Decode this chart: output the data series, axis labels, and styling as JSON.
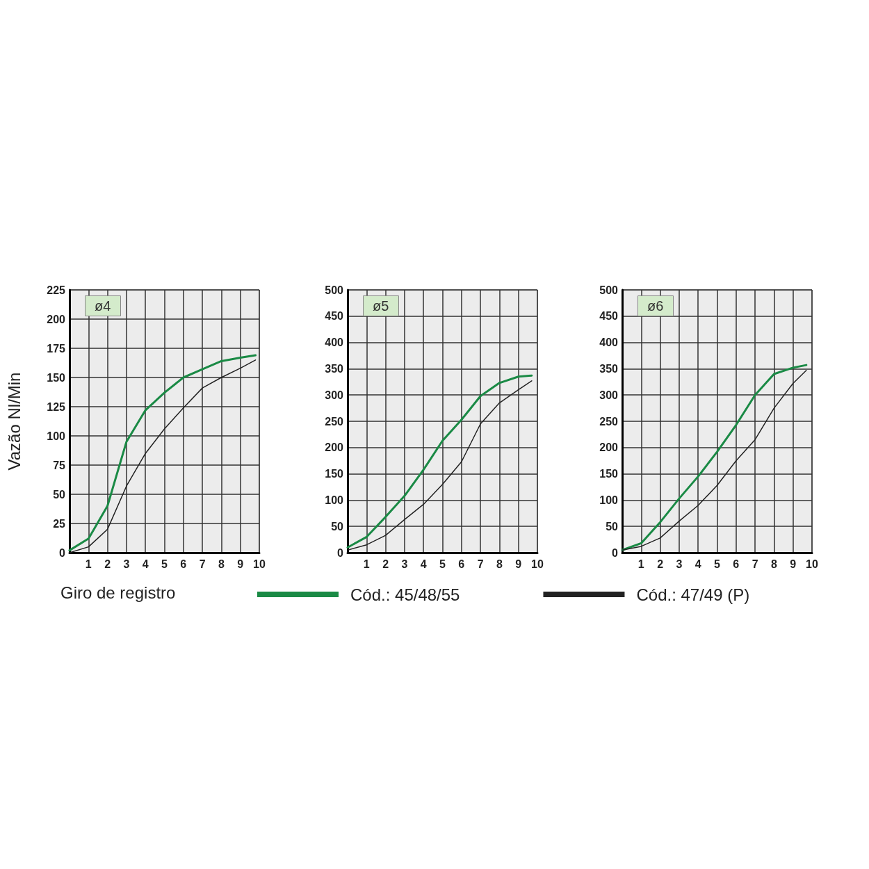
{
  "chart_data": [
    {
      "type": "line",
      "title": "ø4",
      "xlabel": "Giro de registro",
      "ylabel": "Vazão Nl/Min",
      "legend": "bottom",
      "grid": true,
      "marker": "none",
      "line_style": "solid",
      "xlim": [
        0,
        10
      ],
      "xticks": [
        1,
        2,
        3,
        4,
        5,
        6,
        7,
        8,
        9,
        10
      ],
      "ylim": [
        0,
        225
      ],
      "yticks": [
        0,
        25,
        50,
        75,
        100,
        125,
        150,
        175,
        200,
        225
      ],
      "x": [
        0,
        1,
        2,
        3,
        4,
        5,
        6,
        7,
        8,
        9,
        9.8
      ],
      "series": [
        {
          "name": "Cód.: 45/48/55",
          "color": "#1a8a45",
          "values": [
            2,
            12,
            40,
            95,
            122,
            137,
            150,
            157,
            164,
            167,
            169
          ]
        },
        {
          "name": "Cód.: 47/49 (P)",
          "color": "#222222",
          "values": [
            0,
            5,
            20,
            57,
            85,
            106,
            124,
            141,
            150,
            158,
            165
          ]
        }
      ]
    },
    {
      "type": "line",
      "title": "ø5",
      "grid": true,
      "marker": "none",
      "line_style": "solid",
      "xlim": [
        0,
        10
      ],
      "xticks": [
        1,
        2,
        3,
        4,
        5,
        6,
        7,
        8,
        9,
        10
      ],
      "ylim": [
        0,
        500
      ],
      "yticks": [
        0,
        50,
        100,
        150,
        200,
        250,
        300,
        350,
        400,
        450,
        500
      ],
      "x": [
        0,
        1,
        2,
        3,
        4,
        5,
        6,
        7,
        8,
        9,
        9.7
      ],
      "series": [
        {
          "color": "#1a8a45",
          "values": [
            10,
            30,
            68,
            108,
            158,
            213,
            253,
            298,
            323,
            335,
            337
          ]
        },
        {
          "color": "#222222",
          "values": [
            5,
            15,
            33,
            63,
            92,
            130,
            173,
            245,
            285,
            310,
            327
          ]
        }
      ]
    },
    {
      "type": "line",
      "title": "ø6",
      "grid": true,
      "marker": "none",
      "line_style": "solid",
      "xlim": [
        0,
        10
      ],
      "xticks": [
        1,
        2,
        3,
        4,
        5,
        6,
        7,
        8,
        9,
        10
      ],
      "ylim": [
        0,
        500
      ],
      "yticks": [
        0,
        50,
        100,
        150,
        200,
        250,
        300,
        350,
        400,
        450,
        500
      ],
      "x": [
        0,
        1,
        2,
        3,
        4,
        5,
        6,
        7,
        8,
        9,
        9.7
      ],
      "series": [
        {
          "color": "#1a8a45",
          "values": [
            5,
            18,
            58,
            103,
            145,
            192,
            243,
            300,
            340,
            352,
            357
          ]
        },
        {
          "color": "#222222",
          "values": [
            5,
            12,
            28,
            60,
            90,
            128,
            175,
            215,
            275,
            322,
            347
          ]
        }
      ]
    }
  ]
}
